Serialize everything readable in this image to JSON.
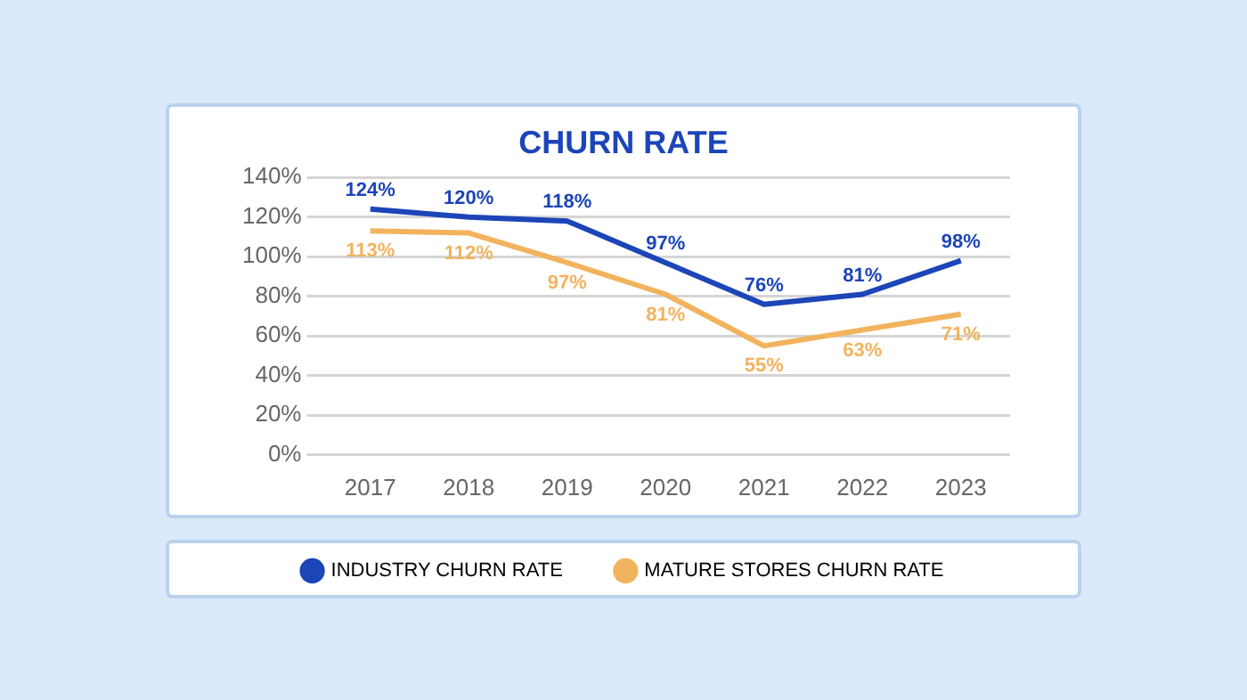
{
  "chart_data": {
    "type": "line",
    "title": "CHURN RATE",
    "categories": [
      "2017",
      "2018",
      "2019",
      "2020",
      "2021",
      "2022",
      "2023"
    ],
    "series": [
      {
        "name": "INDUSTRY CHURN RATE",
        "color": "#1c45b8",
        "values": [
          124,
          120,
          118,
          97,
          76,
          81,
          98
        ],
        "value_labels": [
          "124%",
          "120%",
          "118%",
          "97%",
          "76%",
          "81%",
          "98%"
        ]
      },
      {
        "name": "MATURE STORES CHURN RATE",
        "color": "#f2b35e",
        "values": [
          113,
          112,
          97,
          81,
          55,
          63,
          71
        ],
        "value_labels": [
          "113%",
          "112%",
          "97%",
          "81%",
          "55%",
          "63%",
          "71%"
        ]
      }
    ],
    "ylim": [
      0,
      140
    ],
    "yticks": [
      {
        "value": 0,
        "label": "0%"
      },
      {
        "value": 20,
        "label": "20%"
      },
      {
        "value": 40,
        "label": "40%"
      },
      {
        "value": 60,
        "label": "60%"
      },
      {
        "value": 80,
        "label": "80%"
      },
      {
        "value": 100,
        "label": "100%"
      },
      {
        "value": 120,
        "label": "120%"
      },
      {
        "value": 140,
        "label": "140%"
      }
    ],
    "grid": "y",
    "legend": "bottom",
    "marker": "none",
    "line_style": "solid"
  }
}
